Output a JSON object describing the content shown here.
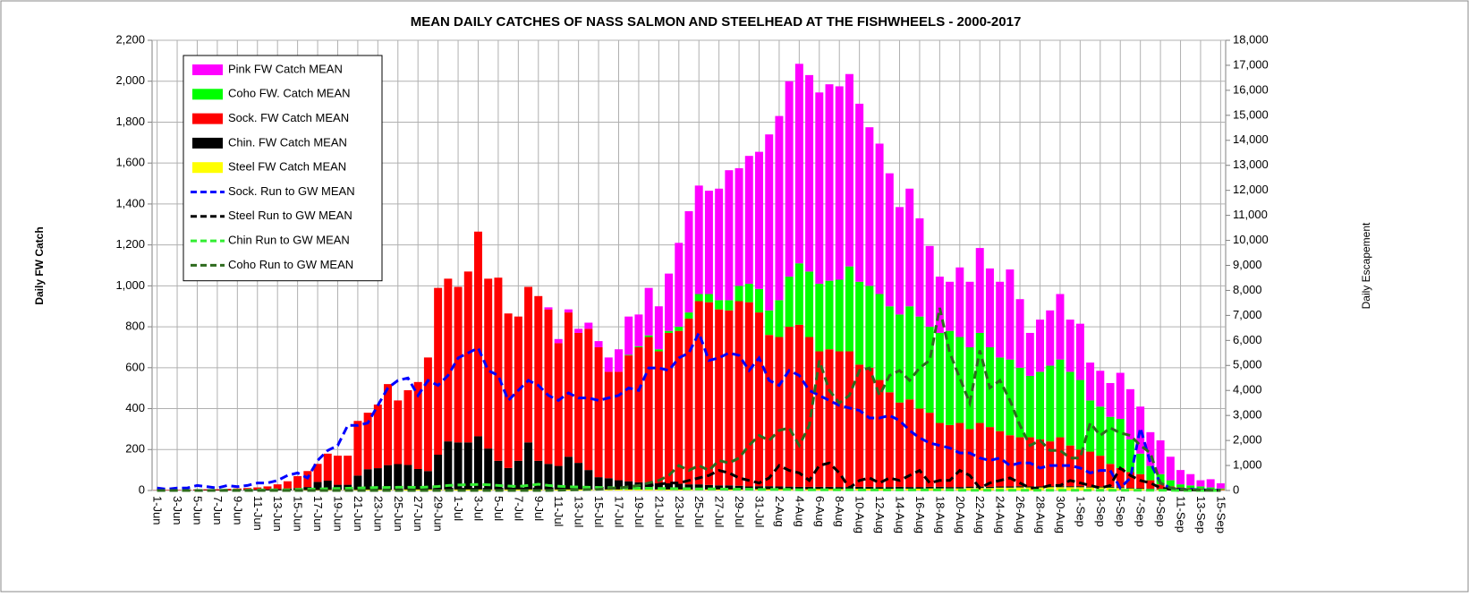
{
  "chart_data": {
    "type": "bar",
    "stacked": true,
    "title": "MEAN DAILY CATCHES OF NASS SALMON AND STEELHEAD AT THE FISHWHEELS - 2000-2017",
    "y_label": "Daily FW Catch",
    "y2_label": "Daily Escapement",
    "grid": true,
    "legend": "upper left",
    "categories": [
      "1-Jun",
      null,
      "3-Jun",
      null,
      "5-Jun",
      null,
      "7-Jun",
      null,
      "9-Jun",
      null,
      "11-Jun",
      null,
      "13-Jun",
      null,
      "15-Jun",
      null,
      "17-Jun",
      null,
      "19-Jun",
      null,
      "21-Jun",
      null,
      "23-Jun",
      null,
      "25-Jun",
      null,
      "27-Jun",
      null,
      "29-Jun",
      null,
      "1-Jul",
      null,
      "3-Jul",
      null,
      "5-Jul",
      null,
      "7-Jul",
      null,
      "9-Jul",
      null,
      "11-Jul",
      null,
      "13-Jul",
      null,
      "15-Jul",
      null,
      "17-Jul",
      null,
      "19-Jul",
      null,
      "21-Jul",
      null,
      "23-Jul",
      null,
      "25-Jul",
      null,
      "27-Jul",
      null,
      "29-Jul",
      null,
      "31-Jul",
      null,
      "2-Aug",
      null,
      "4-Aug",
      null,
      "6-Aug",
      null,
      "8-Aug",
      null,
      "10-Aug",
      null,
      "12-Aug",
      null,
      "14-Aug",
      null,
      "16-Aug",
      null,
      "18-Aug",
      null,
      "20-Aug",
      null,
      "22-Aug",
      null,
      "24-Aug",
      null,
      "26-Aug",
      null,
      "28-Aug",
      null,
      "30-Aug",
      null,
      "1-Sep",
      null,
      "3-Sep",
      null,
      "5-Sep",
      null,
      "7-Sep",
      null,
      "9-Sep",
      null,
      "11-Sep",
      null,
      "13-Sep",
      null,
      "15-Sep"
    ],
    "ylim": [
      0,
      2200
    ],
    "yticks": [
      0,
      200,
      400,
      600,
      800,
      {
        "value": 1000,
        "label": "1,000"
      },
      {
        "value": 1200,
        "label": "1,200"
      },
      {
        "value": 1400,
        "label": "1,400"
      },
      {
        "value": 1600,
        "label": "1,600"
      },
      {
        "value": 1800,
        "label": "1,800"
      },
      {
        "value": 2000,
        "label": "2,000"
      },
      {
        "value": 2200,
        "label": "2,200"
      }
    ],
    "y2lim": [
      0,
      18000
    ],
    "y2ticks": [
      0,
      {
        "value": 1000,
        "label": "1,000"
      },
      {
        "value": 2000,
        "label": "2,000"
      },
      {
        "value": 3000,
        "label": "3,000"
      },
      {
        "value": 4000,
        "label": "4,000"
      },
      {
        "value": 5000,
        "label": "5,000"
      },
      {
        "value": 6000,
        "label": "6,000"
      },
      {
        "value": 7000,
        "label": "7,000"
      },
      {
        "value": 8000,
        "label": "8,000"
      },
      {
        "value": 9000,
        "label": "9,000"
      },
      {
        "value": 10000,
        "label": "10,000"
      },
      {
        "value": 11000,
        "label": "11,000"
      },
      {
        "value": 12000,
        "label": "12,000"
      },
      {
        "value": 13000,
        "label": "13,000"
      },
      {
        "value": 14000,
        "label": "14,000"
      },
      {
        "value": 15000,
        "label": "15,000"
      },
      {
        "value": 16000,
        "label": "16,000"
      },
      {
        "value": 17000,
        "label": "17,000"
      },
      {
        "value": 18000,
        "label": "18,000"
      }
    ],
    "series": [
      {
        "name": "Pink FW Catch MEAN",
        "color": "#ff00ff",
        "type": "bar",
        "values": [
          0,
          0,
          0,
          0,
          0,
          0,
          0,
          0,
          0,
          0,
          0,
          0,
          0,
          0,
          0,
          0,
          0,
          0,
          0,
          0,
          0,
          0,
          0,
          0,
          0,
          0,
          0,
          0,
          0,
          0,
          0,
          0,
          0,
          0,
          0,
          0,
          0,
          0,
          0,
          10,
          20,
          15,
          20,
          30,
          30,
          70,
          110,
          187,
          155,
          232,
          210,
          280,
          410,
          495,
          530,
          505,
          545,
          635,
          575,
          625,
          670,
          860,
          900,
          955,
          975,
          960,
          935,
          960,
          945,
          940,
          870,
          775,
          735,
          650,
          525,
          575,
          480,
          395,
          275,
          240,
          340,
          320,
          415,
          385,
          370,
          440,
          335,
          210,
          255,
          270,
          320,
          255,
          275,
          185,
          175,
          165,
          225,
          245,
          230,
          165,
          165,
          115,
          70,
          55,
          30,
          40,
          25
        ]
      },
      {
        "name": "Coho FW. Catch MEAN",
        "color": "#00ff00",
        "type": "bar",
        "values": [
          0,
          0,
          0,
          0,
          0,
          0,
          0,
          0,
          0,
          0,
          0,
          0,
          0,
          0,
          0,
          0,
          0,
          0,
          0,
          0,
          0,
          0,
          0,
          0,
          0,
          0,
          0,
          0,
          0,
          0,
          0,
          0,
          0,
          0,
          0,
          0,
          0,
          0,
          0,
          0,
          0,
          0,
          0,
          0,
          0,
          0,
          0,
          3,
          5,
          8,
          10,
          10,
          20,
          30,
          35,
          40,
          45,
          50,
          75,
          90,
          115,
          120,
          180,
          245,
          300,
          320,
          330,
          335,
          350,
          415,
          405,
          400,
          420,
          420,
          430,
          455,
          450,
          420,
          440,
          460,
          420,
          400,
          440,
          390,
          360,
          370,
          340,
          300,
          330,
          370,
          380,
          360,
          340,
          250,
          240,
          230,
          240,
          160,
          100,
          70,
          50,
          30,
          15,
          13,
          10,
          7,
          4
        ]
      },
      {
        "name": "Sock. FW Catch MEAN",
        "color": "#ff0000",
        "type": "bar",
        "values": [
          1,
          2,
          2,
          3,
          4,
          4,
          4,
          6,
          6,
          8,
          10,
          14,
          23,
          36,
          58,
          78,
          88,
          132,
          142,
          142,
          267,
          276,
          311,
          396,
          311,
          365,
          425,
          555,
          815,
          795,
          760,
          835,
          1000,
          830,
          895,
          755,
          705,
          760,
          805,
          755,
          600,
          705,
          635,
          690,
          635,
          520,
          530,
          615,
          660,
          710,
          645,
          735,
          747,
          810,
          895,
          893,
          860,
          855,
          902,
          900,
          849,
          739,
          730,
          781,
          792,
          732,
          662,
          672,
          663,
          663,
          597,
          582,
          523,
          463,
          412,
          428,
          383,
          362,
          312,
          303,
          313,
          281,
          311,
          292,
          270,
          250,
          239,
          240,
          230,
          219,
          239,
          199,
          179,
          171,
          151,
          112,
          94,
          77,
          69,
          41,
          22,
          14,
          9,
          7,
          6,
          5,
          3
        ]
      },
      {
        "name": "Chin. FW Catch MEAN",
        "color": "#000000",
        "type": "bar",
        "values": [
          1,
          1,
          1,
          1,
          1,
          2,
          2,
          2,
          3,
          3,
          4,
          5,
          6,
          8,
          10,
          15,
          40,
          45,
          25,
          25,
          70,
          100,
          105,
          120,
          125,
          120,
          100,
          90,
          170,
          235,
          230,
          230,
          260,
          200,
          140,
          105,
          140,
          230,
          140,
          125,
          115,
          160,
          130,
          95,
          60,
          55,
          45,
          40,
          35,
          35,
          30,
          30,
          28,
          25,
          25,
          22,
          20,
          20,
          18,
          15,
          15,
          15,
          14,
          13,
          12,
          12,
          11,
          11,
          10,
          10,
          10,
          10,
          9,
          9,
          9,
          8,
          8,
          8,
          8,
          7,
          7,
          7,
          7,
          6,
          6,
          6,
          6,
          5,
          5,
          5,
          5,
          5,
          5,
          4,
          4,
          4,
          4,
          3,
          3,
          3,
          3,
          2,
          2,
          2,
          1,
          1,
          1
        ]
      },
      {
        "name": "Steel FW Catch MEAN",
        "color": "#ffff00",
        "type": "bar",
        "values": [
          0,
          0,
          0,
          0,
          0,
          0,
          0,
          0,
          1,
          1,
          1,
          1,
          1,
          1,
          2,
          2,
          2,
          3,
          3,
          3,
          3,
          4,
          4,
          4,
          4,
          5,
          5,
          5,
          5,
          5,
          5,
          5,
          5,
          5,
          5,
          5,
          5,
          5,
          5,
          5,
          5,
          5,
          5,
          5,
          5,
          5,
          5,
          5,
          5,
          5,
          5,
          5,
          5,
          5,
          5,
          5,
          5,
          5,
          5,
          5,
          6,
          6,
          6,
          6,
          6,
          6,
          7,
          7,
          7,
          7,
          8,
          8,
          8,
          8,
          9,
          9,
          9,
          10,
          10,
          10,
          10,
          12,
          12,
          12,
          14,
          14,
          15,
          15,
          15,
          16,
          16,
          16,
          16,
          15,
          15,
          14,
          12,
          10,
          8,
          6,
          5,
          4,
          4,
          3,
          3,
          2,
          2
        ]
      },
      {
        "name": "Sock. Run to GW MEAN",
        "color": "#0000ff",
        "type": "line",
        "axis": "y2",
        "values": [
          100,
          50,
          100,
          100,
          200,
          150,
          100,
          200,
          150,
          200,
          300,
          300,
          400,
          600,
          700,
          500,
          1200,
          1600,
          1800,
          2600,
          2600,
          2700,
          3400,
          4100,
          4400,
          4500,
          3800,
          4400,
          4200,
          4600,
          5300,
          5500,
          5700,
          4800,
          4600,
          3600,
          4000,
          4400,
          4200,
          3800,
          3600,
          3900,
          3700,
          3700,
          3600,
          3700,
          3800,
          4100,
          4000,
          4900,
          4900,
          4800,
          5300,
          5500,
          6300,
          5200,
          5300,
          5500,
          5400,
          4800,
          5300,
          4400,
          4200,
          4800,
          4600,
          4000,
          3800,
          3600,
          3400,
          3300,
          3200,
          2900,
          2900,
          3000,
          2800,
          2400,
          2100,
          1900,
          1800,
          1700,
          1500,
          1500,
          1300,
          1200,
          1300,
          1000,
          1100,
          1100,
          900,
          1000,
          1000,
          1000,
          900,
          700,
          800,
          800,
          100,
          500,
          2500,
          1100,
          300,
          100,
          50,
          50,
          30,
          20,
          10
        ]
      },
      {
        "name": "Steel Run to GW MEAN",
        "color": "#000000",
        "type": "line",
        "axis": "y2",
        "values": [
          0,
          0,
          0,
          0,
          0,
          0,
          0,
          0,
          0,
          0,
          0,
          0,
          0,
          0,
          0,
          0,
          0,
          10,
          10,
          10,
          20,
          20,
          20,
          30,
          30,
          30,
          30,
          40,
          40,
          50,
          50,
          50,
          50,
          50,
          50,
          50,
          60,
          60,
          60,
          60,
          70,
          70,
          80,
          80,
          90,
          90,
          100,
          120,
          150,
          200,
          250,
          300,
          300,
          400,
          500,
          600,
          800,
          700,
          500,
          400,
          300,
          500,
          1000,
          800,
          700,
          400,
          1000,
          1100,
          700,
          100,
          400,
          500,
          300,
          500,
          400,
          600,
          800,
          300,
          400,
          400,
          800,
          600,
          100,
          300,
          400,
          500,
          300,
          100,
          100,
          200,
          200,
          400,
          300,
          200,
          100,
          200,
          900,
          600,
          400,
          300,
          100,
          50,
          30,
          20,
          10,
          10,
          0
        ]
      },
      {
        "name": "Chin Run to GW MEAN",
        "color": "#33ee33",
        "type": "line",
        "axis": "y2",
        "values": [
          0,
          0,
          0,
          0,
          0,
          0,
          10,
          10,
          10,
          10,
          20,
          20,
          30,
          30,
          40,
          50,
          60,
          70,
          80,
          90,
          100,
          110,
          120,
          120,
          130,
          130,
          120,
          140,
          160,
          200,
          220,
          230,
          240,
          230,
          200,
          180,
          160,
          200,
          250,
          200,
          170,
          150,
          140,
          130,
          120,
          110,
          100,
          100,
          90,
          90,
          80,
          80,
          70,
          70,
          60,
          60,
          60,
          50,
          50,
          50,
          40,
          40,
          40,
          40,
          30,
          30,
          30,
          30,
          30,
          30,
          20,
          20,
          20,
          20,
          20,
          20,
          20,
          20,
          20,
          20,
          10,
          10,
          10,
          10,
          10,
          10,
          10,
          10,
          10,
          10,
          10,
          10,
          10,
          10,
          10,
          10,
          10,
          10,
          10,
          10,
          10,
          10,
          0,
          0,
          0,
          0,
          0
        ]
      },
      {
        "name": "Coho Run to GW MEAN",
        "color": "#2e6b1e",
        "type": "line",
        "axis": "y2",
        "values": [
          0,
          0,
          0,
          0,
          0,
          0,
          0,
          0,
          0,
          0,
          0,
          0,
          0,
          0,
          0,
          0,
          0,
          0,
          0,
          0,
          0,
          0,
          0,
          0,
          0,
          0,
          0,
          0,
          0,
          0,
          0,
          0,
          0,
          0,
          0,
          0,
          0,
          0,
          0,
          0,
          10,
          20,
          30,
          40,
          50,
          80,
          100,
          150,
          200,
          300,
          400,
          600,
          1000,
          800,
          1000,
          800,
          1200,
          1100,
          1300,
          1800,
          2200,
          2000,
          2400,
          2500,
          1800,
          2600,
          5200,
          4000,
          3500,
          3800,
          4800,
          4900,
          3800,
          4600,
          4800,
          4400,
          4900,
          5200,
          7300,
          5500,
          4500,
          3500,
          5600,
          4100,
          4400,
          3600,
          2600,
          1800,
          2000,
          1600,
          1600,
          1300,
          1300,
          2700,
          2200,
          2500,
          2300,
          2200,
          1800,
          1500,
          300,
          100,
          50,
          30,
          20,
          10,
          0
        ]
      }
    ]
  }
}
